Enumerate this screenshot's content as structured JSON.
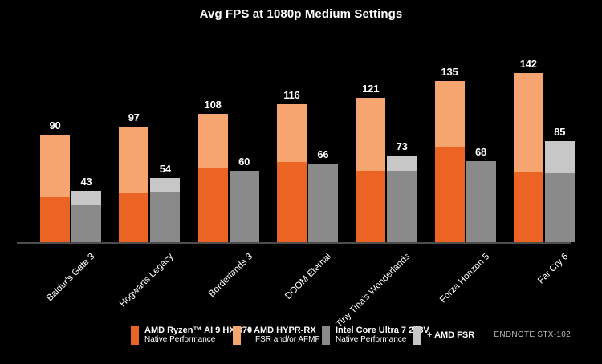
{
  "title": "Avg FPS at 1080p Medium Settings",
  "endnote": "ENDNOTE STX-102",
  "colors": {
    "background": "#000000",
    "amd_native": "#EB6423",
    "amd_uplift": "#F6A470",
    "intel_native": "#8A8A8A",
    "intel_uplift": "#C7C7C7",
    "axis_line": "#4D4D4D",
    "text": "#FFFFFF",
    "endnote_text": "#BDBDBD"
  },
  "legend": [
    {
      "swatch": "amd_native",
      "label": "AMD Ryzen™ AI 9 HX 370",
      "sublabel": "Native Performance"
    },
    {
      "swatch": "amd_uplift",
      "label": "+ AMD HYPR-RX",
      "sublabel": "FSR and/or AFMF 2"
    },
    {
      "swatch": "intel_native",
      "label": "Intel Core Ultra 7 258V",
      "sublabel": "Native Performance"
    },
    {
      "swatch": "intel_uplift",
      "label": "+ AMD FSR",
      "sublabel": ""
    }
  ],
  "chart_data": {
    "type": "bar",
    "variant": "grouped-stacked-pairs",
    "title": "Avg FPS at 1080p Medium Settings",
    "categories": [
      "Baldur's Gate 3",
      "Hogwarts Legacy",
      "Borderlands 3",
      "DOOM Eternal",
      "Tiny Tina's Wonderlands",
      "Forza Horizon 5",
      "Far Cry 6"
    ],
    "series": [
      {
        "key": "amd_native",
        "name": "AMD Ryzen™ AI 9 HX 370 — Native Performance",
        "values": [
          38,
          41,
          62,
          67,
          60,
          80,
          59
        ],
        "estimated_from_bar_splits": true
      },
      {
        "key": "amd_total",
        "name": "+ AMD HYPR-RX (FSR and/or AFMF 2) — stacked total, labeled",
        "values": [
          90,
          97,
          108,
          116,
          121,
          135,
          142
        ]
      },
      {
        "key": "intel_native",
        "name": "Intel Core Ultra 7 258V — Native Performance",
        "values": [
          31,
          42,
          60,
          66,
          60,
          68,
          58
        ],
        "estimated_from_bar_splits": true
      },
      {
        "key": "intel_total",
        "name": "+ AMD FSR — stacked total, labeled",
        "values": [
          43,
          54,
          60,
          66,
          73,
          68,
          85
        ]
      }
    ],
    "ylim": [
      0,
      150
    ],
    "grid": false,
    "value_labels": "totals shown above each bar",
    "legend_position": "bottom",
    "x_tick_rotation": 45
  }
}
